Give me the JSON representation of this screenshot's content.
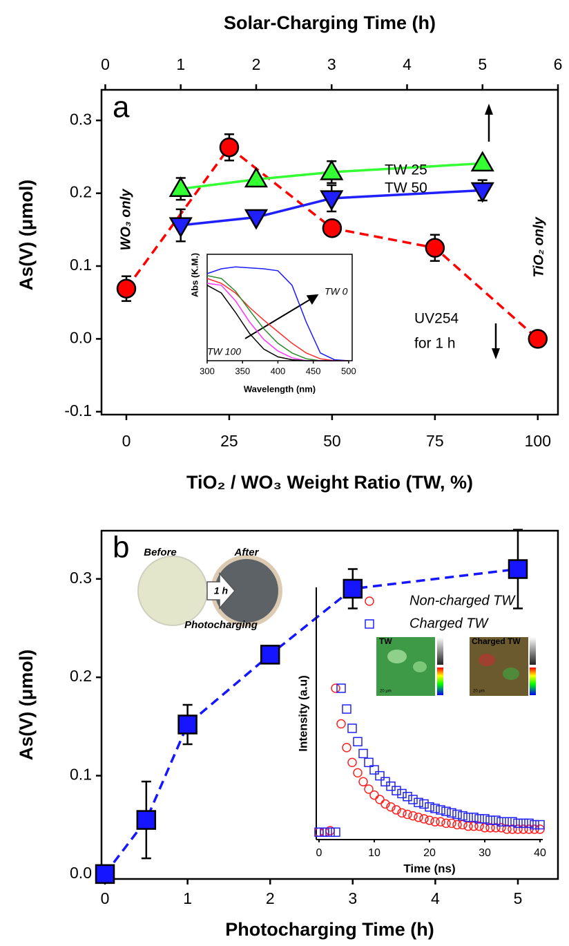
{
  "chart_data": [
    {
      "type": "line",
      "xlabel": "TiO₂ / WO₃ Weight Ratio (TW, %)",
      "x2label": "Solar-Charging Time (h)",
      "ylabel": "As(V) (μmol)",
      "xlim": [
        -6.04,
        104.9
      ],
      "xticks": [
        0,
        25,
        50,
        75,
        100
      ],
      "x2lim": [
        -0.05,
        6
      ],
      "x2ticks": [
        0,
        1,
        2,
        3,
        4,
        5,
        6
      ],
      "ylim": [
        -0.104,
        0.342
      ],
      "yticks": [
        -0.1,
        {
          "value": 0,
          "label": "0.0"
        },
        0.1,
        0.2,
        0.3
      ],
      "series": [
        {
          "x": [
            0,
            25,
            50,
            75,
            100
          ],
          "values": [
            0.069,
            0.263,
            0.152,
            0.125,
            0
          ],
          "errors": [
            0.017,
            0.018,
            0.004,
            0.018,
            0
          ],
          "color": "#ff0000",
          "marker": "circle",
          "linestyle": "dashed"
        },
        {
          "name": "TW 25",
          "xaxis": "x2",
          "x": [
            1,
            2,
            3,
            5
          ],
          "values": [
            0.206,
            0.219,
            0.229,
            0.241
          ],
          "errors": [
            0.015,
            0.004,
            0.015,
            0.004
          ],
          "color": "#33ff33",
          "marker": "triangle-up",
          "linestyle": "solid"
        },
        {
          "name": "TW 50",
          "xaxis": "x2",
          "x": [
            1,
            2,
            3,
            5
          ],
          "values": [
            0.156,
            0.167,
            0.193,
            0.204
          ],
          "errors": [
            0.022,
            0.004,
            0.018,
            0.014
          ],
          "color": "#2020ff",
          "marker": "triangle-down",
          "linestyle": "solid"
        }
      ],
      "annotations": [
        "a",
        "WO₃ only",
        "TiO₂ only",
        "UV254",
        "for 1 h"
      ]
    },
    {
      "type": "line",
      "xlabel": "Wavelength (nm)",
      "ylabel": "Abs (K.M.)",
      "xlim": [
        300,
        505
      ],
      "xticks": [
        300,
        350,
        400,
        450,
        500
      ],
      "ylim": [
        0,
        1.1
      ],
      "x": [
        300,
        320,
        340,
        360,
        380,
        400,
        420,
        440,
        460,
        480,
        500
      ],
      "series": [
        {
          "values": [
            0.9,
            0.95,
            0.97,
            0.96,
            0.95,
            0.93,
            0.78,
            0.4,
            0.08,
            0.01,
            0
          ],
          "color": "#1a1aff",
          "marker": "none",
          "linestyle": "solid"
        },
        {
          "values": [
            0.85,
            0.8,
            0.7,
            0.55,
            0.42,
            0.3,
            0.18,
            0.08,
            0.02,
            0,
            0
          ],
          "color": "#ff2a2a",
          "marker": "none",
          "linestyle": "solid"
        },
        {
          "values": [
            0.88,
            0.85,
            0.72,
            0.52,
            0.33,
            0.18,
            0.08,
            0.02,
            0,
            0,
            0
          ],
          "color": "#2a8a2a",
          "marker": "none",
          "linestyle": "solid"
        },
        {
          "values": [
            0.8,
            0.78,
            0.62,
            0.4,
            0.22,
            0.1,
            0.03,
            0,
            0,
            0,
            0
          ],
          "color": "#ff33ff",
          "marker": "none",
          "linestyle": "solid"
        },
        {
          "values": [
            0.78,
            0.7,
            0.5,
            0.28,
            0.12,
            0.04,
            0.01,
            0,
            0,
            0,
            0
          ],
          "color": "#000000",
          "marker": "none",
          "linestyle": "solid"
        }
      ],
      "annotations": [
        "TW 0",
        "TW 100"
      ]
    },
    {
      "type": "line",
      "xlabel": "Photocharging Time (h)",
      "ylabel": "As(V) (μmol)",
      "xlim": [
        -0.042,
        5.485
      ],
      "xticks": [
        0,
        1,
        2,
        3,
        4,
        5
      ],
      "ylim": [
        -0.005,
        0.349
      ],
      "yticks": [
        {
          "value": 0,
          "label": "0.0"
        },
        0.1,
        0.2,
        0.3
      ],
      "series": [
        {
          "x": [
            0,
            0.5,
            1,
            2,
            3,
            5
          ],
          "values": [
            0,
            0.055,
            0.152,
            0.223,
            0.29,
            0.31
          ],
          "errors": [
            0,
            0.039,
            0.02,
            0.003,
            0.02,
            0.04
          ],
          "color": "#1515ff",
          "marker": "square",
          "linestyle": "dashed"
        }
      ],
      "annotations": [
        "b",
        "Before",
        "After",
        "1 h",
        "Photocharging"
      ]
    },
    {
      "type": "scatter",
      "xlabel": "Time (ns)",
      "ylabel": "Intensity (a.u)",
      "xlim": [
        -0.5,
        40.5
      ],
      "xticks": [
        0,
        10,
        20,
        30,
        40
      ],
      "ylim": [
        0,
        1.7
      ],
      "x": [
        0,
        1,
        2,
        3,
        4,
        5,
        6,
        7,
        8,
        9,
        10,
        11,
        12,
        13,
        14,
        15,
        16,
        17,
        18,
        19,
        20,
        21,
        22,
        23,
        24,
        25,
        26,
        27,
        28,
        29,
        30,
        31,
        32,
        33,
        34,
        35,
        36,
        37,
        38,
        39,
        40
      ],
      "legend": "upper right",
      "series": [
        {
          "name": "Non-charged TW",
          "values": [
            0.05,
            0.05,
            0.06,
            1.02,
            0.78,
            0.62,
            0.52,
            0.45,
            0.39,
            0.34,
            0.3,
            0.27,
            0.24,
            0.22,
            0.2,
            0.18,
            0.17,
            0.16,
            0.15,
            0.14,
            0.13,
            0.12,
            0.12,
            0.11,
            0.11,
            0.1,
            0.1,
            0.09,
            0.09,
            0.09,
            0.08,
            0.08,
            0.08,
            0.08,
            0.07,
            0.07,
            0.07,
            0.07,
            0.07,
            0.07,
            0.07
          ],
          "color": "#ff2020",
          "marker": "open-circle",
          "linestyle": "none"
        },
        {
          "name": "Charged TW",
          "values": [
            0.05,
            0.05,
            0.05,
            0.05,
            1.02,
            0.88,
            0.75,
            0.66,
            0.58,
            0.52,
            0.47,
            0.43,
            0.39,
            0.36,
            0.33,
            0.31,
            0.29,
            0.27,
            0.25,
            0.24,
            0.22,
            0.21,
            0.2,
            0.19,
            0.18,
            0.17,
            0.16,
            0.15,
            0.15,
            0.14,
            0.14,
            0.13,
            0.13,
            0.12,
            0.12,
            0.12,
            0.11,
            0.11,
            0.11,
            0.1,
            0.1
          ],
          "color": "#2020ff",
          "marker": "open-square",
          "linestyle": "none"
        }
      ],
      "annotations": [
        "TW",
        "Charged TW",
        "20 μm",
        "20 μm"
      ]
    }
  ]
}
